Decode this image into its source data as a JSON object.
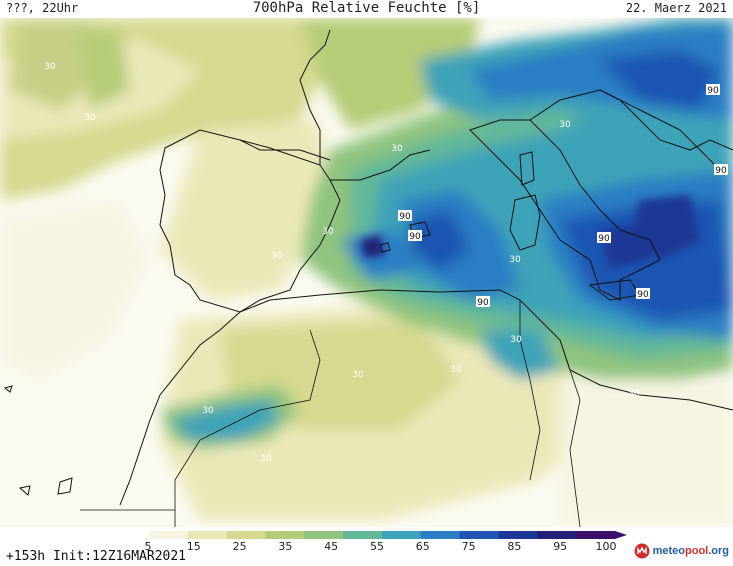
{
  "header": {
    "left": "???, 22Uhr",
    "title": "700hPa Relative Feuchte [%]",
    "right": "22. Maerz 2021"
  },
  "footer": {
    "run_info": "+153h  Init:12Z16MAR2021",
    "brand_prefix": "meteo",
    "brand_suffix": "pool",
    "brand_tld": ".org"
  },
  "legend": {
    "ticks": [
      "5",
      "15",
      "25",
      "35",
      "45",
      "55",
      "65",
      "75",
      "85",
      "95",
      "100"
    ],
    "colors": [
      "#ffffff",
      "#f7f4e2",
      "#ebe8b8",
      "#d6d98f",
      "#b5cc78",
      "#8fc47e",
      "#63b898",
      "#3ca3b8",
      "#2b7ec4",
      "#1f54b2",
      "#1d3796",
      "#23207a",
      "#3a0e69"
    ]
  },
  "contour_labels": [
    {
      "text": "30",
      "group": "atlantic"
    },
    {
      "text": "30",
      "group": "atlantic"
    },
    {
      "text": "30",
      "group": "france"
    },
    {
      "text": "30",
      "group": "adriatic"
    },
    {
      "text": "90",
      "group": "balkans"
    },
    {
      "text": "90",
      "group": "greece"
    },
    {
      "text": "30",
      "group": "iberia"
    },
    {
      "text": "30",
      "group": "iberia"
    },
    {
      "text": "90",
      "group": "balearic"
    },
    {
      "text": "90",
      "group": "balearic"
    },
    {
      "text": "90",
      "group": "tyrrhenian"
    },
    {
      "text": "30",
      "group": "sardinia"
    },
    {
      "text": "90",
      "group": "ionian"
    },
    {
      "text": "90",
      "group": "algeria"
    },
    {
      "text": "30",
      "group": "tunisia"
    },
    {
      "text": "30",
      "group": "sahara"
    },
    {
      "text": "30",
      "group": "sahara"
    },
    {
      "text": "30",
      "group": "libya"
    },
    {
      "text": "30",
      "group": "morocco"
    },
    {
      "text": "30",
      "group": "morocco"
    }
  ]
}
